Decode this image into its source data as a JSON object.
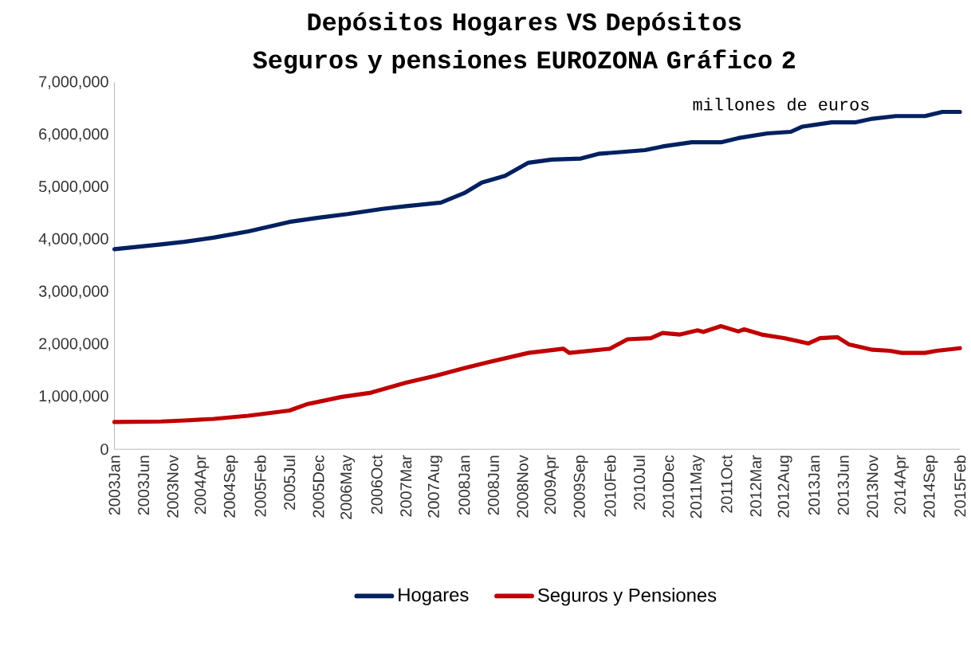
{
  "chart_data": {
    "type": "line",
    "title": "Depósitos Hogares VS Depósitos Seguros y pensiones EUROZONA Gráfico 2",
    "annotations": [
      "millones de euros"
    ],
    "xlim": [
      "2003-01",
      "2015-02"
    ],
    "xticks": [
      {
        "value": "2003-01",
        "label": "2003Jan"
      },
      {
        "value": "2003-06",
        "label": "2003Jun"
      },
      {
        "value": "2003-11",
        "label": "2003Nov"
      },
      {
        "value": "2004-04",
        "label": "2004Apr"
      },
      {
        "value": "2004-09",
        "label": "2004Sep"
      },
      {
        "value": "2005-02",
        "label": "2005Feb"
      },
      {
        "value": "2005-07",
        "label": "2005Jul"
      },
      {
        "value": "2005-12",
        "label": "2005Dec"
      },
      {
        "value": "2006-05",
        "label": "2006May"
      },
      {
        "value": "2006-10",
        "label": "2006Oct"
      },
      {
        "value": "2007-03",
        "label": "2007Mar"
      },
      {
        "value": "2007-08",
        "label": "2007Aug"
      },
      {
        "value": "2008-01",
        "label": "2008Jan"
      },
      {
        "value": "2008-06",
        "label": "2008Jun"
      },
      {
        "value": "2008-11",
        "label": "2008Nov"
      },
      {
        "value": "2009-04",
        "label": "2009Apr"
      },
      {
        "value": "2009-09",
        "label": "2009Sep"
      },
      {
        "value": "2010-02",
        "label": "2010Feb"
      },
      {
        "value": "2010-07",
        "label": "2010Jul"
      },
      {
        "value": "2010-12",
        "label": "2010Dec"
      },
      {
        "value": "2011-05",
        "label": "2011May"
      },
      {
        "value": "2011-10",
        "label": "2011Oct"
      },
      {
        "value": "2012-03",
        "label": "2012Mar"
      },
      {
        "value": "2012-08",
        "label": "2012Aug"
      },
      {
        "value": "2013-01",
        "label": "2013Jan"
      },
      {
        "value": "2013-06",
        "label": "2013Jun"
      },
      {
        "value": "2013-11",
        "label": "2013Nov"
      },
      {
        "value": "2014-04",
        "label": "2014Apr"
      },
      {
        "value": "2014-09",
        "label": "2014Sep"
      },
      {
        "value": "2015-02",
        "label": "2015Feb"
      }
    ],
    "ylim": [
      0,
      7000000
    ],
    "yticks": [
      {
        "value": 0,
        "label": "0"
      },
      {
        "value": 1000000,
        "label": "1,000,000"
      },
      {
        "value": 2000000,
        "label": "2,000,000"
      },
      {
        "value": 3000000,
        "label": "3,000,000"
      },
      {
        "value": 4000000,
        "label": "4,000,000"
      },
      {
        "value": 5000000,
        "label": "5,000,000"
      },
      {
        "value": 6000000,
        "label": "6,000,000"
      },
      {
        "value": 7000000,
        "label": "7,000,000"
      }
    ],
    "legend": "bottom",
    "series": [
      {
        "name": "Hogares",
        "color": "#002060",
        "x": [
          "2003-01",
          "2003-09",
          "2004-01",
          "2004-06",
          "2004-12",
          "2005-07",
          "2005-12",
          "2006-05",
          "2006-11",
          "2007-03",
          "2007-09",
          "2008-01",
          "2008-04",
          "2008-08",
          "2008-12",
          "2009-04",
          "2009-09",
          "2009-12",
          "2010-08",
          "2010-11",
          "2011-04",
          "2011-09",
          "2011-12",
          "2012-05",
          "2012-09",
          "2012-11",
          "2013-04",
          "2013-08",
          "2013-11",
          "2014-03",
          "2014-08",
          "2014-11",
          "2015-02"
        ],
        "values": [
          3820000,
          3910000,
          3960000,
          4040000,
          4160000,
          4340000,
          4420000,
          4490000,
          4590000,
          4640000,
          4710000,
          4890000,
          5090000,
          5220000,
          5470000,
          5530000,
          5550000,
          5640000,
          5710000,
          5780000,
          5860000,
          5860000,
          5940000,
          6030000,
          6060000,
          6160000,
          6240000,
          6240000,
          6310000,
          6360000,
          6360000,
          6440000,
          6440000
        ]
      },
      {
        "name": "Seguros y Pensiones",
        "color": "#c00000",
        "x": [
          "2003-01",
          "2003-09",
          "2004-01",
          "2004-06",
          "2004-12",
          "2005-07",
          "2005-10",
          "2006-04",
          "2006-09",
          "2007-03",
          "2007-08",
          "2008-01",
          "2008-05",
          "2008-12",
          "2009-06",
          "2009-07",
          "2010-02",
          "2010-05",
          "2010-09",
          "2010-11",
          "2011-02",
          "2011-05",
          "2011-06",
          "2011-09",
          "2011-12",
          "2012-01",
          "2012-04",
          "2012-08",
          "2012-12",
          "2013-02",
          "2013-05",
          "2013-07",
          "2013-11",
          "2014-02",
          "2014-04",
          "2014-08",
          "2014-10",
          "2015-02"
        ],
        "values": [
          520000,
          530000,
          550000,
          580000,
          640000,
          740000,
          860000,
          1000000,
          1080000,
          1270000,
          1400000,
          1550000,
          1660000,
          1840000,
          1920000,
          1840000,
          1920000,
          2100000,
          2120000,
          2220000,
          2190000,
          2270000,
          2240000,
          2350000,
          2250000,
          2290000,
          2190000,
          2120000,
          2020000,
          2120000,
          2140000,
          2000000,
          1900000,
          1880000,
          1840000,
          1840000,
          1880000,
          1930000
        ]
      }
    ]
  }
}
